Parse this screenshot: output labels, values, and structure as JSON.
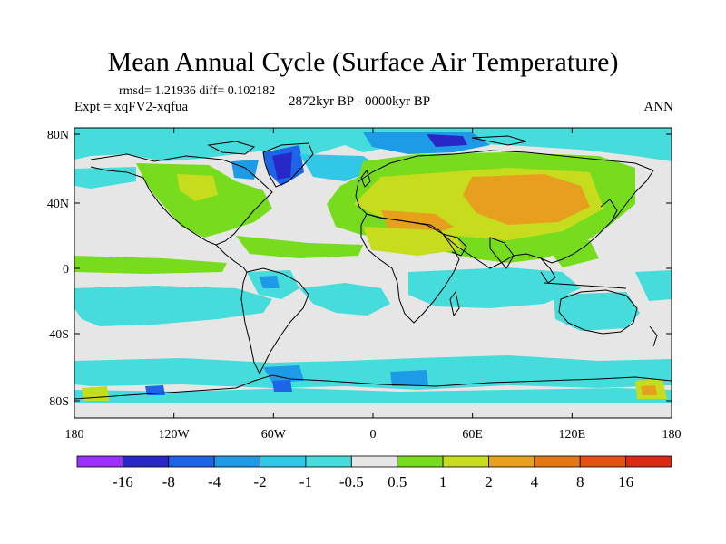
{
  "title": "Mean Annual Cycle (Surface Air Temperature)",
  "stats": "rmsd= 1.21936 diff= 0.102182",
  "experiment": "Expt = xqFV2-xqfua",
  "period": "2872kyr BP - 0000kyr BP",
  "season": "ANN",
  "axes": {
    "lat_ticks": [
      "80N",
      "40N",
      "0",
      "40S",
      "80S"
    ],
    "lon_ticks": [
      "180",
      "120W",
      "60W",
      "0",
      "60E",
      "120E",
      "180"
    ]
  },
  "legend": {
    "labels": [
      "-16",
      "-8",
      "-4",
      "-2",
      "-1",
      "-0.5",
      "0.5",
      "1",
      "2",
      "4",
      "8",
      "16"
    ],
    "colors": [
      "#9b30ff",
      "#2828c8",
      "#1e64e6",
      "#1e9be6",
      "#30c8e6",
      "#46dcdc",
      "#e6e6e6",
      "#78dc1e",
      "#c8dc1e",
      "#e6a01e",
      "#e67814",
      "#e65014",
      "#dc2814"
    ]
  },
  "colors": {
    "land_outline": "#000000",
    "neutral": "#e6e6e6"
  }
}
